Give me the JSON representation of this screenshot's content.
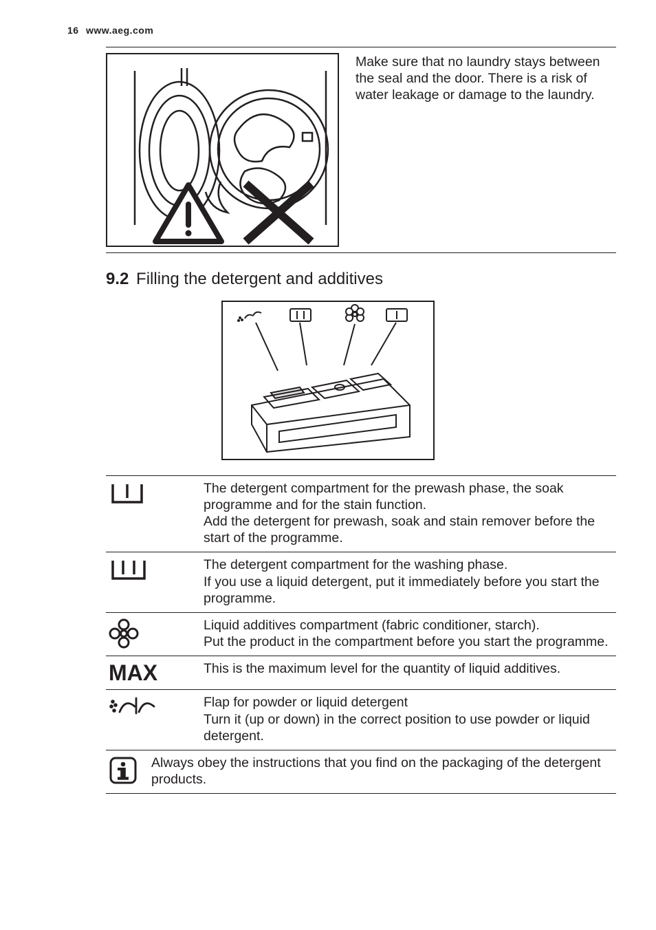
{
  "colors": {
    "text": "#231f20",
    "background": "#ffffff",
    "rule": "#231f20"
  },
  "pageHeader": {
    "pageNumber": "16",
    "url": "www.aeg.com"
  },
  "section1": {
    "text": "Make sure that no laundry stays between the seal and the door. There is a risk of water leakage or damage to the laundry."
  },
  "heading": {
    "number": "9.2",
    "title": "Filling the detergent and additives"
  },
  "rows": [
    {
      "icon": "prewash",
      "text": "The detergent compartment for the prewash phase, the soak programme and for the stain function.\nAdd the detergent for prewash, soak and stain remover before the start of the programme."
    },
    {
      "icon": "mainwash",
      "text": "The detergent compartment for the washing phase.\nIf you use a liquid detergent, put it immediately before you start the programme."
    },
    {
      "icon": "flower",
      "text": "Liquid additives compartment (fabric conditioner, starch).\nPut the product in the compartment before you start the programme."
    },
    {
      "icon": "max",
      "label": "MAX",
      "text": "This is the maximum level for the quantity of liquid additives."
    },
    {
      "icon": "flap",
      "text": "Flap for powder or liquid detergent\nTurn it (up or down) in the correct position to use powder or liquid detergent."
    }
  ],
  "infoNote": {
    "text": "Always obey the instructions that you find on the packaging of the detergent products."
  }
}
